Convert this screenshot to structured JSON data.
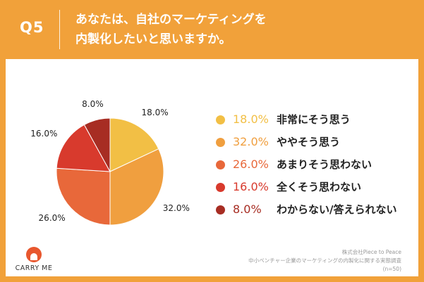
{
  "header": {
    "q_label": "Q5",
    "title_line1": "あなたは、自社のマーケティングを",
    "title_line2": "内製化したいと思いますか。"
  },
  "colors": {
    "header_bg": "#F1A13A",
    "border": "#F1A13A"
  },
  "chart_data": {
    "type": "pie",
    "title": "",
    "slices": [
      {
        "label": "非常にそう思う",
        "value": 18.0,
        "display": "18.0%",
        "color": "#F2BF45"
      },
      {
        "label": "ややそう思う",
        "value": 32.0,
        "display": "32.0%",
        "color": "#F09F3F"
      },
      {
        "label": "あまりそう思わない",
        "value": 26.0,
        "display": "26.0%",
        "color": "#E8683A"
      },
      {
        "label": "全くそう思わない",
        "value": 16.0,
        "display": "16.0%",
        "color": "#D83A2D"
      },
      {
        "label": "わからない/答えられない",
        "value": 8.0,
        "display": "8.0%",
        "color": "#A72D23"
      }
    ],
    "legend_placement": "right"
  },
  "logo": {
    "name": "CARRY ME"
  },
  "source": {
    "line1": "株式会社Piece to Peace",
    "line2": "中小ベンチャー企業のマーケティングの内製化に関する実態調査",
    "line3": "(n=50)"
  }
}
